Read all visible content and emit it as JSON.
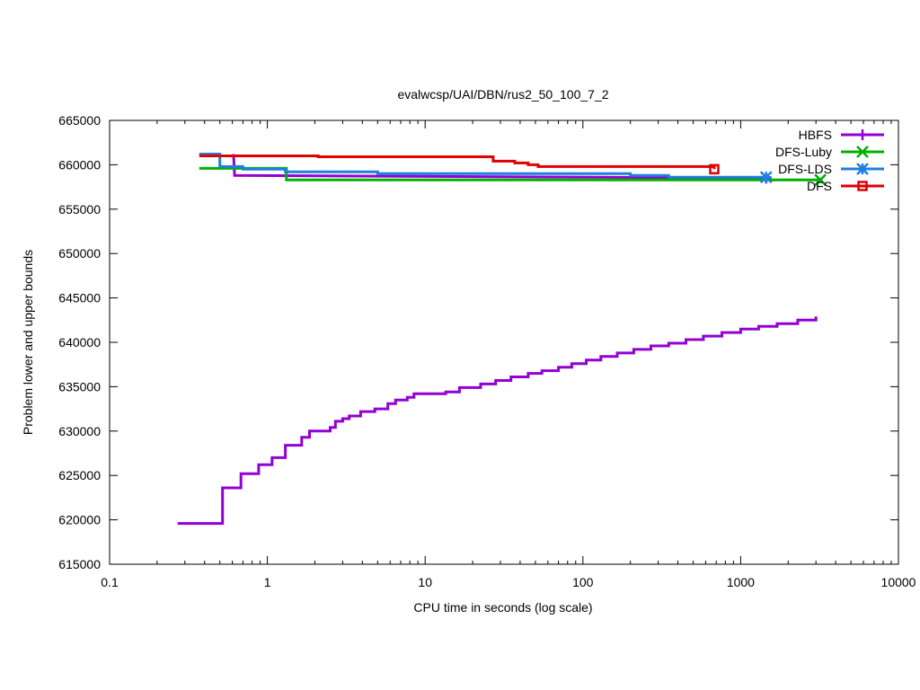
{
  "chart_data": {
    "type": "line",
    "title": "evalwcsp/UAI/DBN/rus2_50_100_7_2",
    "xlabel": "CPU time in seconds (log scale)",
    "ylabel": "Problem lower and upper bounds",
    "xscale": "log",
    "xlim": [
      0.1,
      10000
    ],
    "ylim": [
      615000,
      665000
    ],
    "grid": false,
    "legend_position": "top-right",
    "x_ticks": [
      "0.1",
      "1",
      "10",
      "100",
      "1000",
      "10000"
    ],
    "x_tick_values": [
      0.1,
      1,
      10,
      100,
      1000,
      10000
    ],
    "y_ticks": [
      "615000",
      "620000",
      "625000",
      "630000",
      "635000",
      "640000",
      "645000",
      "650000",
      "655000",
      "660000",
      "665000"
    ],
    "y_tick_values": [
      615000,
      620000,
      625000,
      630000,
      635000,
      640000,
      645000,
      650000,
      655000,
      660000,
      665000
    ],
    "series": [
      {
        "name": "HBFS",
        "color": "#9400d3",
        "marker": "plus",
        "step": true,
        "segments": [
          [
            [
              0.61,
              661200
            ],
            [
              0.62,
              658800
            ],
            [
              1450,
              658500
            ]
          ],
          [
            [
              0.27,
              619600
            ],
            [
              0.52,
              619600
            ],
            [
              0.52,
              623600
            ],
            [
              0.68,
              623600
            ],
            [
              0.68,
              625200
            ],
            [
              0.88,
              625200
            ],
            [
              0.88,
              626200
            ],
            [
              1.07,
              626200
            ],
            [
              1.07,
              627000
            ],
            [
              1.3,
              627000
            ],
            [
              1.3,
              628400
            ],
            [
              1.65,
              628400
            ],
            [
              1.65,
              629300
            ],
            [
              1.85,
              629300
            ],
            [
              1.85,
              630000
            ],
            [
              2.5,
              630000
            ],
            [
              2.5,
              630400
            ],
            [
              2.7,
              630400
            ],
            [
              2.7,
              631100
            ],
            [
              3.0,
              631100
            ],
            [
              3.0,
              631400
            ],
            [
              3.3,
              631400
            ],
            [
              3.3,
              631700
            ],
            [
              3.9,
              631700
            ],
            [
              3.9,
              632200
            ],
            [
              4.8,
              632200
            ],
            [
              4.8,
              632500
            ],
            [
              5.8,
              632500
            ],
            [
              5.8,
              633100
            ],
            [
              6.5,
              633100
            ],
            [
              6.5,
              633500
            ],
            [
              7.7,
              633500
            ],
            [
              7.7,
              633800
            ],
            [
              8.5,
              633800
            ],
            [
              8.5,
              634200
            ],
            [
              13.5,
              634200
            ],
            [
              13.5,
              634400
            ],
            [
              16.5,
              634400
            ],
            [
              16.5,
              634900
            ],
            [
              22.5,
              634900
            ],
            [
              22.5,
              635300
            ],
            [
              28,
              635300
            ],
            [
              28,
              635700
            ],
            [
              35,
              635700
            ],
            [
              35,
              636100
            ],
            [
              45,
              636100
            ],
            [
              45,
              636500
            ],
            [
              55,
              636500
            ],
            [
              55,
              636800
            ],
            [
              70,
              636800
            ],
            [
              70,
              637200
            ],
            [
              85,
              637200
            ],
            [
              85,
              637600
            ],
            [
              105,
              637600
            ],
            [
              105,
              638000
            ],
            [
              130,
              638000
            ],
            [
              130,
              638400
            ],
            [
              165,
              638400
            ],
            [
              165,
              638800
            ],
            [
              210,
              638800
            ],
            [
              210,
              639200
            ],
            [
              270,
              639200
            ],
            [
              270,
              639600
            ],
            [
              350,
              639600
            ],
            [
              350,
              639900
            ],
            [
              450,
              639900
            ],
            [
              450,
              640300
            ],
            [
              580,
              640300
            ],
            [
              580,
              640700
            ],
            [
              760,
              640700
            ],
            [
              760,
              641100
            ],
            [
              1000,
              641100
            ],
            [
              1000,
              641500
            ],
            [
              1300,
              641500
            ],
            [
              1300,
              641800
            ],
            [
              1700,
              641800
            ],
            [
              1700,
              642100
            ],
            [
              2300,
              642100
            ],
            [
              2300,
              642500
            ],
            [
              3000,
              642500
            ],
            [
              3000,
              642900
            ]
          ]
        ]
      },
      {
        "name": "DFS-Luby",
        "color": "#00b000",
        "marker": "x",
        "step": true,
        "segments": [
          [
            [
              0.37,
              659600
            ],
            [
              1.32,
              659600
            ],
            [
              1.32,
              658300
            ],
            [
              3200,
              658300
            ]
          ]
        ]
      },
      {
        "name": "DFS-LDS",
        "color": "#1f7ee0",
        "marker": "star",
        "step": true,
        "segments": [
          [
            [
              0.37,
              661200
            ],
            [
              0.5,
              661200
            ],
            [
              0.5,
              659800
            ],
            [
              0.7,
              659800
            ],
            [
              0.7,
              659500
            ],
            [
              1.3,
              659500
            ],
            [
              1.3,
              659200
            ],
            [
              5,
              659200
            ],
            [
              5,
              659000
            ],
            [
              200,
              659000
            ],
            [
              200,
              658800
            ],
            [
              350,
              658800
            ],
            [
              350,
              658600
            ],
            [
              1450,
              658600
            ]
          ]
        ]
      },
      {
        "name": "DFS",
        "color": "#e00000",
        "marker": "square",
        "step": true,
        "segments": [
          [
            [
              0.37,
              661000
            ],
            [
              2.1,
              661000
            ],
            [
              2.1,
              660900
            ],
            [
              27,
              660900
            ],
            [
              27,
              660400
            ],
            [
              37,
              660400
            ],
            [
              37,
              660200
            ],
            [
              45,
              660200
            ],
            [
              45,
              660000
            ],
            [
              52,
              660000
            ],
            [
              52,
              659800
            ],
            [
              680,
              659800
            ],
            [
              680,
              659500
            ]
          ]
        ]
      }
    ]
  }
}
